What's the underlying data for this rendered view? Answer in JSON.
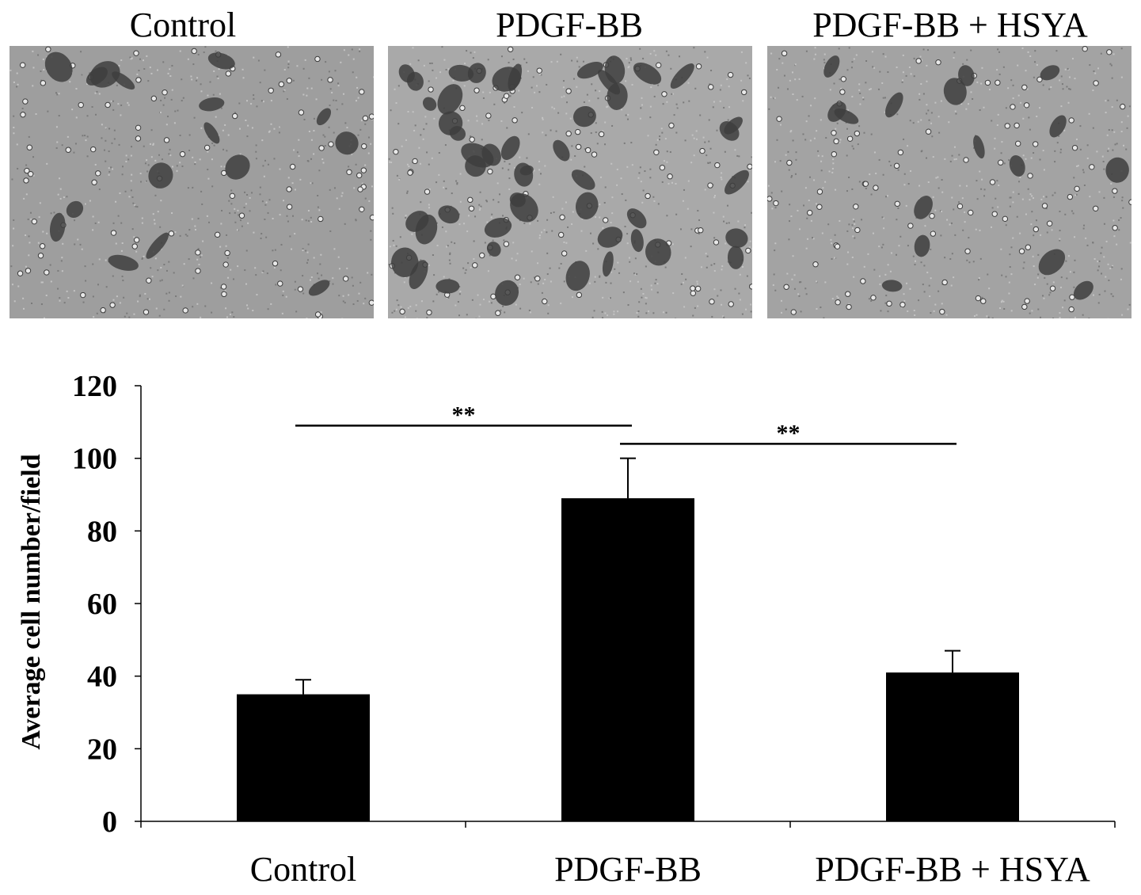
{
  "panels": [
    {
      "title": "Control",
      "shade": "#9e9e9e",
      "cell_density": "low"
    },
    {
      "title": "PDGF-BB",
      "shade": "#a9a9a9",
      "cell_density": "high"
    },
    {
      "title": "PDGF-BB + HSYA",
      "shade": "#a3a3a3",
      "cell_density": "low"
    }
  ],
  "chart_data": {
    "type": "bar",
    "categories": [
      "Control",
      "PDGF-BB",
      "PDGF-BB + HSYA"
    ],
    "values": [
      35,
      89,
      41
    ],
    "error": [
      4,
      11,
      6
    ],
    "ylabel": "Average cell number/field",
    "ylim": [
      0,
      120
    ],
    "yticks": [
      "0",
      "20",
      "40",
      "60",
      "80",
      "100",
      "120"
    ],
    "bar_color": "#000000",
    "grid": false,
    "significance": [
      {
        "from": "Control",
        "to": "PDGF-BB",
        "label": "**"
      },
      {
        "from": "PDGF-BB",
        "to": "PDGF-BB + HSYA",
        "label": "**"
      }
    ]
  }
}
